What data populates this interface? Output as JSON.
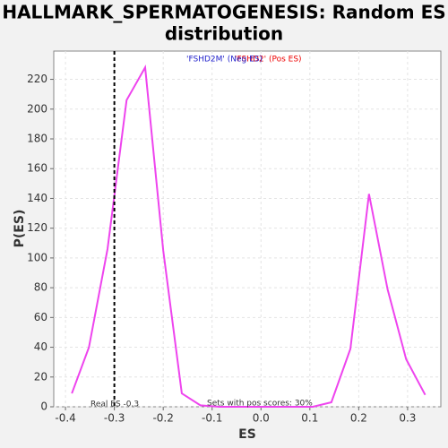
{
  "chart_data": {
    "type": "line",
    "title": [
      "HALLMARK_SPERMATOGENESIS: Random ES",
      "distribution"
    ],
    "xlabel": "ES",
    "ylabel": "P(ES)",
    "x": [
      -0.387,
      -0.352,
      -0.314,
      -0.275,
      -0.237,
      -0.2,
      -0.162,
      -0.124,
      -0.085,
      -0.047,
      -0.009,
      0.03,
      0.068,
      0.106,
      0.144,
      0.183,
      0.221,
      0.259,
      0.297,
      0.336
    ],
    "series": [
      {
        "name": "Random ES",
        "color": "#ee44ee",
        "values": [
          9,
          40,
          106,
          206,
          228,
          105,
          9,
          1,
          0,
          0,
          0,
          0,
          0,
          0,
          3,
          39,
          143,
          79,
          32,
          8
        ]
      }
    ],
    "xlim": [
      -0.424,
      0.368
    ],
    "ylim": [
      0,
      239
    ],
    "xticks": [
      -0.4,
      -0.3,
      -0.2,
      -0.1,
      {
        "value": 0,
        "label": "0.0"
      },
      0.1,
      0.2,
      0.3
    ],
    "yticks": [
      0,
      20,
      40,
      60,
      80,
      100,
      120,
      140,
      160,
      180,
      200,
      220
    ],
    "grid": true,
    "real_es": -0.3,
    "real_es_label": "Real ES -0.3",
    "pos_scores_label": "Sets with pos scores: 30%",
    "neg_label": "'FSHD2M' (Neg ES)",
    "pos_label": "'FSHD2' (Pos ES)"
  }
}
